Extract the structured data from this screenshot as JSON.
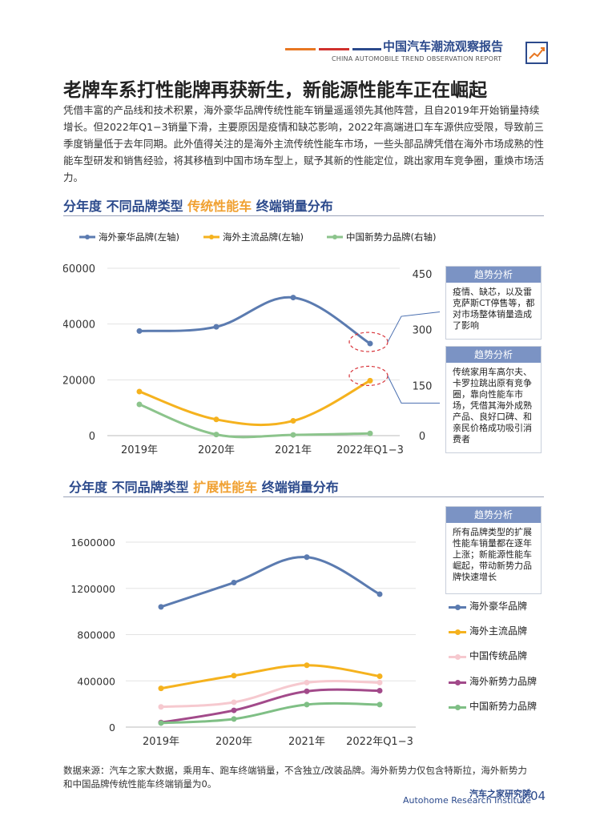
{
  "header": {
    "title": "中国汽车潮流观察报告",
    "subtitle": "CHINA AUTOMOBILE TREND OBSERVATION REPORT",
    "bar_colors": [
      "#e87722",
      "#d0312d",
      "#2c4a8c"
    ]
  },
  "headline": "老牌车系打性能牌再获新生，新能源性能车正在崛起",
  "paragraph": "凭借丰富的产品线和技术积累，海外豪华品牌传统性能车销量遥遥领先其他阵营，且自2019年开始销量持续增长。但2022年Q1−3销量下滑，主要原因是疫情和缺芯影响，2022年高端进口车车源供应受限，导致前三季度销量低于去年同期。此外值得关注的是海外主流传统性能车市场，一些头部品牌凭借在海外市场成熟的性能车型研发和销售经验，将其移植到中国市场车型上，赋予其新的性能定位，跳出家用车竞争圈，重焕市场活力。",
  "section1": {
    "prefix": "分年度 不同品牌类型 ",
    "highlight": "传统性能车",
    "suffix": " 终端销量分布"
  },
  "section2": {
    "prefix": "分年度 不同品牌类型 ",
    "highlight": "扩展性能车",
    "suffix": " 终端销量分布"
  },
  "trend_boxes": [
    {
      "title": "趋势分析",
      "text": "疫情、缺芯，以及雷克萨斯CT停售等，都对市场整体销量造成了影响"
    },
    {
      "title": "趋势分析",
      "text": "传统家用车高尔夫、卡罗拉跳出原有竞争圈，靠向性能车市场，凭借其海外成熟产品、良好口碑、和亲民价格成功吸引消费者"
    },
    {
      "title": "趋势分析",
      "text": "所有品牌类型的扩展性能车销量都在逐年上涨；新能源性能车崛起，带动新势力品牌快速增长"
    }
  ],
  "chart_data": [
    {
      "type": "line",
      "categories": [
        "2019年",
        "2020年",
        "2021年",
        "2022年Q1−3"
      ],
      "series": [
        {
          "name": "海外豪华品牌(左轴)",
          "axis": "left",
          "color": "#5b7bb0",
          "values": [
            37500,
            39000,
            49500,
            33000
          ]
        },
        {
          "name": "海外主流品牌(左轴)",
          "axis": "left",
          "color": "#f5b21e",
          "values": [
            15800,
            5800,
            5300,
            19700
          ]
        },
        {
          "name": "中国新势力品牌(右轴)",
          "axis": "right",
          "color": "#8cc48c",
          "values": [
            84,
            3,
            2,
            6
          ]
        }
      ],
      "left_axis": {
        "min": 0,
        "max": 60000,
        "ticks": [
          "0",
          "20000",
          "40000",
          "60000"
        ]
      },
      "right_axis": {
        "min": 0,
        "max": 450,
        "ticks": [
          "0",
          "150",
          "300",
          "450"
        ]
      },
      "grid": true,
      "legend": "top"
    },
    {
      "type": "line",
      "categories": [
        "2019年",
        "2020年",
        "2021年",
        "2022年Q1−3"
      ],
      "series": [
        {
          "name": "海外豪华品牌",
          "color": "#5b7bb0",
          "values": [
            1040000,
            1250000,
            1470000,
            1150000
          ]
        },
        {
          "name": "海外主流品牌",
          "color": "#f5b21e",
          "values": [
            335000,
            445000,
            535000,
            440000
          ]
        },
        {
          "name": "中国传统品牌",
          "color": "#f6c9cf",
          "values": [
            175000,
            215000,
            385000,
            385000
          ]
        },
        {
          "name": "海外新势力品牌",
          "color": "#a24a8a",
          "values": [
            40000,
            145000,
            310000,
            315000
          ]
        },
        {
          "name": "中国新势力品牌",
          "color": "#7fbf85",
          "values": [
            35000,
            70000,
            195000,
            195000
          ]
        }
      ],
      "y_axis": {
        "min": 0,
        "max": 1600000,
        "ticks": [
          "0",
          "400000",
          "800000",
          "1200000",
          "1600000"
        ]
      },
      "grid": true,
      "legend": "right"
    }
  ],
  "footer": {
    "source": "数据来源：汽车之家大数据，乘用车、跑车终端销量，不含独立/改装品牌。海外新势力仅包含特斯拉，海外新势力和中国品牌传统性能车终端销量为0。",
    "institute_cn": "汽车之家研究院",
    "institute_en": "Autohome Research Institute",
    "page": "04"
  }
}
